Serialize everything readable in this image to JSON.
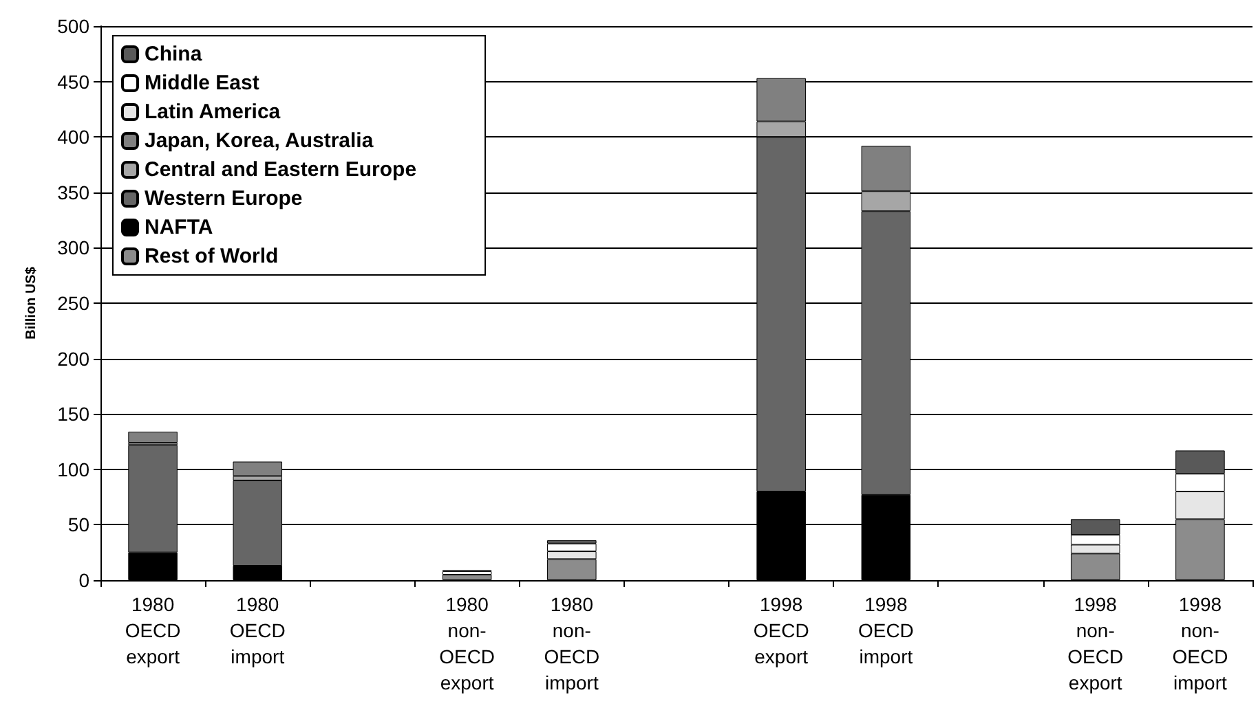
{
  "chart_data": {
    "type": "bar",
    "ylabel": "Billion US$",
    "categories": [
      "1980 OECD export",
      "1980 OECD import",
      null,
      "1980 non-OECD export",
      "1980 non-OECD import",
      null,
      "1998 OECD export",
      "1998 OECD import",
      null,
      "1998 non-OECD export",
      "1998 non-OECD import"
    ],
    "stacked": true,
    "ylim": [
      0,
      500
    ],
    "yticks": [
      0,
      50,
      100,
      150,
      200,
      250,
      300,
      350,
      400,
      450,
      500
    ],
    "grid": "y",
    "legend": "top left",
    "series": [
      {
        "name": "Rest of World",
        "color": "#8c8c8c",
        "values": [
          null,
          null,
          null,
          5,
          19,
          null,
          null,
          null,
          null,
          24,
          55
        ]
      },
      {
        "name": "NAFTA",
        "color": "#000000",
        "values": [
          25,
          13,
          null,
          null,
          null,
          null,
          80,
          77,
          null,
          null,
          null
        ]
      },
      {
        "name": "Western Europe",
        "color": "#666666",
        "values": [
          97,
          77,
          null,
          null,
          null,
          null,
          320,
          256,
          null,
          null,
          null
        ]
      },
      {
        "name": "Central and Eastern Europe",
        "color": "#a6a6a6",
        "values": [
          2,
          4,
          null,
          null,
          null,
          null,
          14,
          18,
          null,
          null,
          null
        ]
      },
      {
        "name": "Japan, Korea, Australia",
        "color": "#808080",
        "values": [
          10,
          13,
          null,
          null,
          null,
          null,
          39,
          41,
          null,
          null,
          null
        ]
      },
      {
        "name": "Latin America",
        "color": "#e6e6e6",
        "values": [
          null,
          null,
          null,
          null,
          7,
          null,
          null,
          null,
          null,
          8,
          25
        ]
      },
      {
        "name": "Middle East",
        "color": "#ffffff",
        "values": [
          null,
          null,
          null,
          3,
          7,
          null,
          null,
          null,
          null,
          9,
          16
        ]
      },
      {
        "name": "China",
        "color": "#595959",
        "values": [
          null,
          null,
          null,
          1,
          3,
          null,
          null,
          null,
          null,
          14,
          21
        ]
      }
    ]
  }
}
